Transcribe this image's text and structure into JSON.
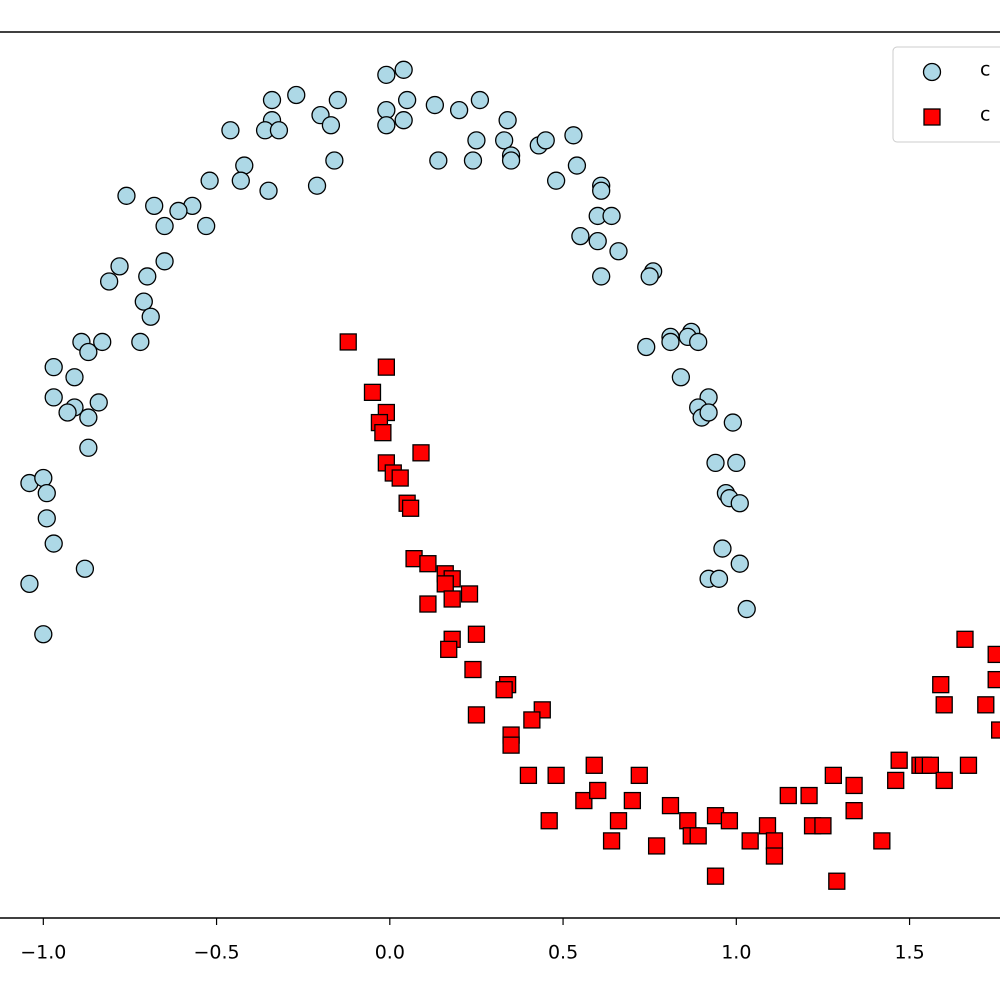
{
  "chart_data": {
    "type": "scatter",
    "xlim": [
      -1.125,
      1.761
    ],
    "ylim": [
      -0.643,
      1.115
    ],
    "xticks": [
      {
        "value": -1,
        "label": "−1.0"
      },
      {
        "value": -0.5,
        "label": "−0.5"
      },
      {
        "value": 0,
        "label": "0.0"
      },
      0.5,
      {
        "value": 1,
        "label": "1.0"
      },
      1.5
    ],
    "legend": "upper right",
    "series": [
      {
        "name": "c",
        "color": "#add8e6",
        "marker": "circle",
        "x": [
          0.04,
          -0.01,
          0.05,
          -0.01,
          0.04,
          -0.01,
          0.13,
          0.2,
          0.26,
          0.34,
          0.25,
          0.24,
          0.14,
          0.33,
          0.35,
          0.35,
          0.43,
          0.45,
          0.53,
          0.54,
          0.48,
          0.61,
          0.61,
          0.6,
          0.64,
          0.55,
          0.6,
          0.66,
          0.61,
          0.76,
          0.75,
          0.81,
          0.81,
          0.87,
          0.86,
          0.89,
          0.74,
          0.84,
          0.92,
          0.89,
          0.9,
          0.92,
          0.99,
          0.94,
          1.0,
          0.97,
          0.98,
          1.01,
          0.96,
          1.01,
          0.92,
          0.95,
          1.03,
          -0.34,
          -0.27,
          -0.15,
          -0.2,
          -0.17,
          -0.34,
          -0.36,
          -0.32,
          -0.46,
          -0.42,
          -0.43,
          -0.35,
          -0.21,
          -0.16,
          -0.52,
          -0.57,
          -0.61,
          -0.65,
          -0.68,
          -0.53,
          -0.76,
          -0.65,
          -0.7,
          -0.78,
          -0.81,
          -0.71,
          -0.69,
          -0.72,
          -0.83,
          -0.89,
          -0.87,
          -0.97,
          -0.91,
          -0.97,
          -0.91,
          -0.84,
          -0.93,
          -0.87,
          -0.87,
          -1.04,
          -1.0,
          -0.99,
          -0.99,
          -0.97,
          -0.88,
          -1.04,
          -1.0
        ],
        "y": [
          1.04,
          1.03,
          0.98,
          0.96,
          0.94,
          0.93,
          0.97,
          0.96,
          0.98,
          0.94,
          0.9,
          0.86,
          0.86,
          0.9,
          0.87,
          0.86,
          0.89,
          0.9,
          0.91,
          0.85,
          0.82,
          0.81,
          0.8,
          0.75,
          0.75,
          0.71,
          0.7,
          0.68,
          0.63,
          0.64,
          0.63,
          0.51,
          0.5,
          0.52,
          0.51,
          0.5,
          0.49,
          0.43,
          0.39,
          0.37,
          0.35,
          0.36,
          0.34,
          0.26,
          0.26,
          0.2,
          0.19,
          0.18,
          0.09,
          0.06,
          0.03,
          0.03,
          -0.03,
          0.98,
          0.99,
          0.98,
          0.95,
          0.93,
          0.94,
          0.92,
          0.92,
          0.92,
          0.85,
          0.82,
          0.8,
          0.81,
          0.86,
          0.82,
          0.77,
          0.76,
          0.73,
          0.77,
          0.73,
          0.79,
          0.66,
          0.63,
          0.65,
          0.62,
          0.58,
          0.55,
          0.5,
          0.5,
          0.5,
          0.48,
          0.45,
          0.43,
          0.39,
          0.37,
          0.38,
          0.36,
          0.35,
          0.29,
          0.22,
          0.23,
          0.2,
          0.15,
          0.1,
          0.05,
          0.02,
          -0.08
        ]
      },
      {
        "name": "c",
        "color": "#ff0000",
        "marker": "square",
        "x": [
          -0.12,
          -0.01,
          -0.05,
          -0.01,
          -0.03,
          -0.02,
          0.09,
          -0.01,
          0.01,
          0.03,
          0.05,
          0.06,
          0.07,
          0.11,
          0.16,
          0.18,
          0.16,
          0.23,
          0.11,
          0.18,
          0.18,
          0.25,
          0.17,
          0.24,
          0.34,
          0.33,
          0.25,
          0.44,
          0.41,
          0.35,
          0.35,
          0.4,
          0.48,
          0.59,
          0.72,
          0.56,
          0.6,
          0.7,
          0.46,
          0.66,
          0.64,
          0.77,
          0.81,
          0.86,
          0.87,
          0.89,
          0.94,
          0.98,
          1.04,
          1.09,
          1.11,
          1.11,
          0.94,
          1.15,
          1.21,
          1.22,
          1.25,
          1.28,
          1.34,
          1.34,
          1.29,
          1.42,
          1.46,
          1.47,
          1.53,
          1.54,
          1.56,
          1.6,
          1.67,
          1.59,
          1.6,
          1.66,
          1.72,
          1.75,
          1.75,
          1.76
        ],
        "y": [
          0.5,
          0.45,
          0.4,
          0.36,
          0.34,
          0.32,
          0.28,
          0.26,
          0.24,
          0.23,
          0.18,
          0.17,
          0.07,
          0.06,
          0.04,
          0.03,
          0.02,
          0.0,
          -0.02,
          -0.01,
          -0.09,
          -0.08,
          -0.11,
          -0.15,
          -0.18,
          -0.19,
          -0.24,
          -0.23,
          -0.25,
          -0.28,
          -0.3,
          -0.36,
          -0.36,
          -0.34,
          -0.36,
          -0.41,
          -0.39,
          -0.41,
          -0.45,
          -0.45,
          -0.49,
          -0.5,
          -0.42,
          -0.45,
          -0.48,
          -0.48,
          -0.44,
          -0.45,
          -0.49,
          -0.46,
          -0.49,
          -0.52,
          -0.56,
          -0.4,
          -0.4,
          -0.46,
          -0.46,
          -0.36,
          -0.38,
          -0.43,
          -0.57,
          -0.49,
          -0.37,
          -0.33,
          -0.34,
          -0.34,
          -0.34,
          -0.37,
          -0.34,
          -0.18,
          -0.22,
          -0.09,
          -0.22,
          -0.17,
          -0.12,
          -0.27
        ]
      }
    ]
  }
}
